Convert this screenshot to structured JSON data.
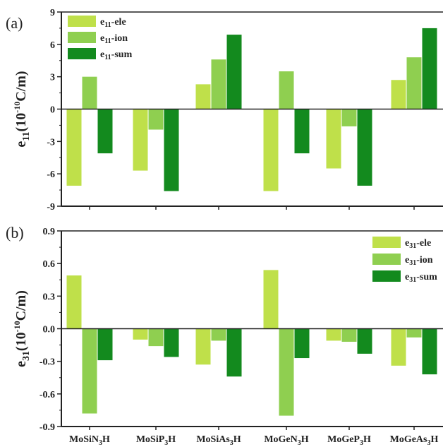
{
  "colors": {
    "ele": "#bfe04a",
    "ion": "#8fcf50",
    "sum": "#138a1e"
  },
  "chart_data": [
    {
      "type": "bar",
      "panel_label": "(a)",
      "ylabel": "e11(10-10C/m)",
      "ylabel_parts": {
        "base": "e",
        "sub": "11",
        "mid": "(10",
        "sup": "-10",
        "unit": "C/m)"
      },
      "ylim": [
        -9,
        9
      ],
      "yticks": [
        -9,
        -6,
        -3,
        0,
        3,
        6,
        9
      ],
      "ytick_labels": [
        "-9",
        "-6",
        "-3",
        "0",
        "3",
        "6",
        "9"
      ],
      "legend_position": "top-left",
      "categories": [
        "MoSiN3H",
        "MoSiP3H",
        "MoSiAs3H",
        "MoGeN3H",
        "MoGeP3H",
        "MoGeAs3H"
      ],
      "category_parts": [
        {
          "pre": "MoSiN",
          "sub": "3",
          "post": "H"
        },
        {
          "pre": "MoSiP",
          "sub": "3",
          "post": "H"
        },
        {
          "pre": "MoSiAs",
          "sub": "3",
          "post": "H"
        },
        {
          "pre": "MoGeN",
          "sub": "3",
          "post": "H"
        },
        {
          "pre": "MoGeP",
          "sub": "3",
          "post": "H"
        },
        {
          "pre": "MoGeAs",
          "sub": "3",
          "post": "H"
        }
      ],
      "series": [
        {
          "name": "e11-ele",
          "legend": {
            "base": "e",
            "sub": "11",
            "suffix": "-ele"
          },
          "color_key": "ele",
          "values": [
            -7.1,
            -5.7,
            2.3,
            -7.6,
            -5.5,
            2.7
          ]
        },
        {
          "name": "e11-ion",
          "legend": {
            "base": "e",
            "sub": "11",
            "suffix": "-ion"
          },
          "color_key": "ion",
          "values": [
            3.0,
            -1.9,
            4.6,
            3.5,
            -1.6,
            4.8
          ]
        },
        {
          "name": "e11-sum",
          "legend": {
            "base": "e",
            "sub": "11",
            "suffix": "-sum"
          },
          "color_key": "sum",
          "values": [
            -4.1,
            -7.6,
            6.9,
            -4.1,
            -7.1,
            7.5
          ]
        }
      ]
    },
    {
      "type": "bar",
      "panel_label": "(b)",
      "ylabel": "e31(10-10C/m)",
      "ylabel_parts": {
        "base": "e",
        "sub": "31",
        "mid": "(10",
        "sup": "-10",
        "unit": "C/m)"
      },
      "ylim": [
        -0.9,
        0.9
      ],
      "yticks": [
        -0.9,
        -0.6,
        -0.3,
        0.0,
        0.3,
        0.6,
        0.9
      ],
      "ytick_labels": [
        "-0.9",
        "-0.6",
        "-0.3",
        "0.0",
        "0.3",
        "0.6",
        "0.9"
      ],
      "legend_position": "top-right",
      "categories": [
        "MoSiN3H",
        "MoSiP3H",
        "MoSiAs3H",
        "MoGeN3H",
        "MoGeP3H",
        "MoGeAs3H"
      ],
      "category_parts": [
        {
          "pre": "MoSiN",
          "sub": "3",
          "post": "H"
        },
        {
          "pre": "MoSiP",
          "sub": "3",
          "post": "H"
        },
        {
          "pre": "MoSiAs",
          "sub": "3",
          "post": "H"
        },
        {
          "pre": "MoGeN",
          "sub": "3",
          "post": "H"
        },
        {
          "pre": "MoGeP",
          "sub": "3",
          "post": "H"
        },
        {
          "pre": "MoGeAs",
          "sub": "3",
          "post": "H"
        }
      ],
      "series": [
        {
          "name": "e31-ele",
          "legend": {
            "base": "e",
            "sub": "31",
            "suffix": "-ele"
          },
          "color_key": "ele",
          "values": [
            0.49,
            -0.1,
            -0.33,
            0.54,
            -0.11,
            -0.34
          ]
        },
        {
          "name": "e31-ion",
          "legend": {
            "base": "e",
            "sub": "31",
            "suffix": "-ion"
          },
          "color_key": "ion",
          "values": [
            -0.78,
            -0.16,
            -0.11,
            -0.8,
            -0.12,
            -0.08
          ]
        },
        {
          "name": "e31-sum",
          "legend": {
            "base": "e",
            "sub": "31",
            "suffix": "-sum"
          },
          "color_key": "sum",
          "values": [
            -0.29,
            -0.26,
            -0.44,
            -0.27,
            -0.23,
            -0.42
          ]
        }
      ]
    }
  ]
}
